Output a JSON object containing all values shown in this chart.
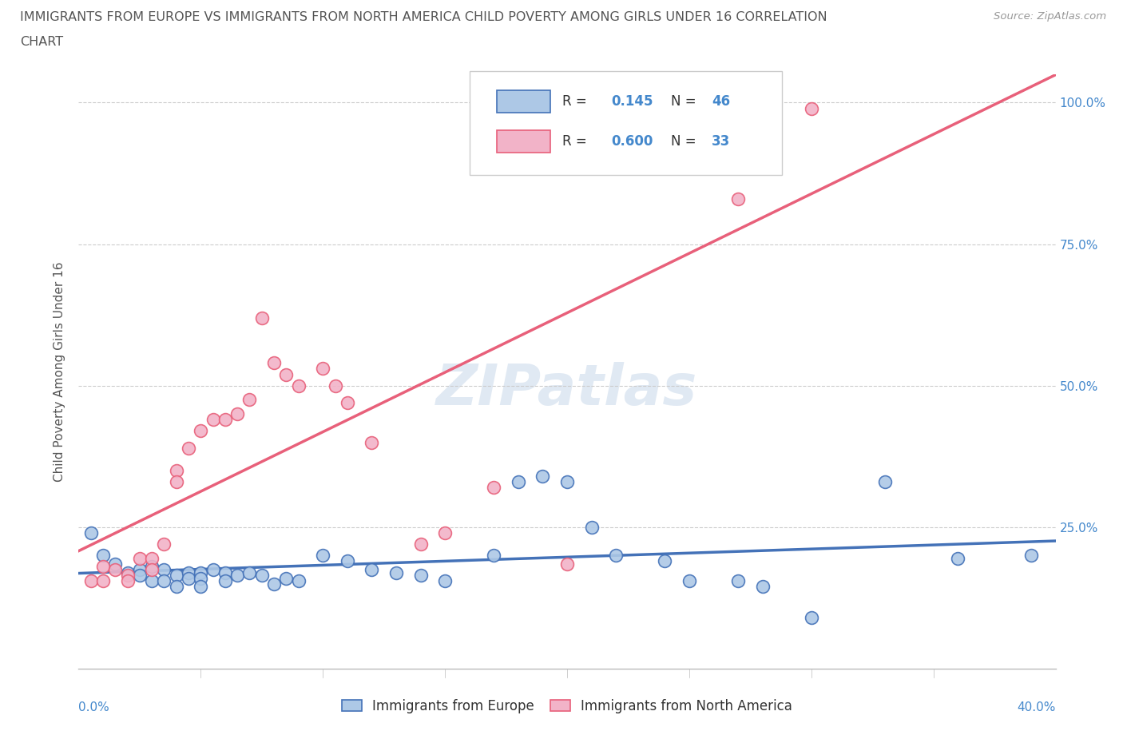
{
  "title_line1": "IMMIGRANTS FROM EUROPE VS IMMIGRANTS FROM NORTH AMERICA CHILD POVERTY AMONG GIRLS UNDER 16 CORRELATION",
  "title_line2": "CHART",
  "source": "Source: ZipAtlas.com",
  "ylabel": "Child Poverty Among Girls Under 16",
  "xlim": [
    0.0,
    0.4
  ],
  "ylim": [
    0.0,
    1.05
  ],
  "yticks": [
    0.0,
    0.25,
    0.5,
    0.75,
    1.0
  ],
  "ytick_labels": [
    "",
    "25.0%",
    "50.0%",
    "75.0%",
    "100.0%"
  ],
  "blue_R": 0.145,
  "blue_N": 46,
  "pink_R": 0.6,
  "pink_N": 33,
  "blue_color": "#adc8e6",
  "pink_color": "#f2b3c8",
  "blue_line_color": "#4472b8",
  "pink_line_color": "#e8607a",
  "watermark": "ZIPatlas",
  "legend_label_blue": "Immigrants from Europe",
  "legend_label_pink": "Immigrants from North America",
  "blue_scatter_x": [
    0.005,
    0.01,
    0.015,
    0.02,
    0.025,
    0.025,
    0.03,
    0.03,
    0.035,
    0.035,
    0.04,
    0.04,
    0.045,
    0.045,
    0.05,
    0.05,
    0.05,
    0.055,
    0.06,
    0.06,
    0.065,
    0.07,
    0.075,
    0.08,
    0.085,
    0.09,
    0.1,
    0.11,
    0.12,
    0.13,
    0.14,
    0.15,
    0.17,
    0.18,
    0.19,
    0.2,
    0.21,
    0.22,
    0.24,
    0.25,
    0.27,
    0.28,
    0.3,
    0.33,
    0.36,
    0.39
  ],
  "blue_scatter_y": [
    0.24,
    0.2,
    0.185,
    0.17,
    0.175,
    0.165,
    0.18,
    0.155,
    0.175,
    0.155,
    0.165,
    0.145,
    0.17,
    0.16,
    0.17,
    0.16,
    0.145,
    0.175,
    0.17,
    0.155,
    0.165,
    0.17,
    0.165,
    0.15,
    0.16,
    0.155,
    0.2,
    0.19,
    0.175,
    0.17,
    0.165,
    0.155,
    0.2,
    0.33,
    0.34,
    0.33,
    0.25,
    0.2,
    0.19,
    0.155,
    0.155,
    0.145,
    0.09,
    0.33,
    0.195,
    0.2
  ],
  "pink_scatter_x": [
    0.005,
    0.01,
    0.01,
    0.015,
    0.02,
    0.02,
    0.025,
    0.03,
    0.03,
    0.035,
    0.04,
    0.04,
    0.045,
    0.05,
    0.055,
    0.06,
    0.065,
    0.07,
    0.075,
    0.08,
    0.085,
    0.09,
    0.1,
    0.105,
    0.11,
    0.12,
    0.14,
    0.15,
    0.17,
    0.2,
    0.25,
    0.27,
    0.3
  ],
  "pink_scatter_y": [
    0.155,
    0.18,
    0.155,
    0.175,
    0.165,
    0.155,
    0.195,
    0.195,
    0.175,
    0.22,
    0.35,
    0.33,
    0.39,
    0.42,
    0.44,
    0.44,
    0.45,
    0.475,
    0.62,
    0.54,
    0.52,
    0.5,
    0.53,
    0.5,
    0.47,
    0.4,
    0.22,
    0.24,
    0.32,
    0.185,
    0.97,
    0.83,
    0.99
  ]
}
